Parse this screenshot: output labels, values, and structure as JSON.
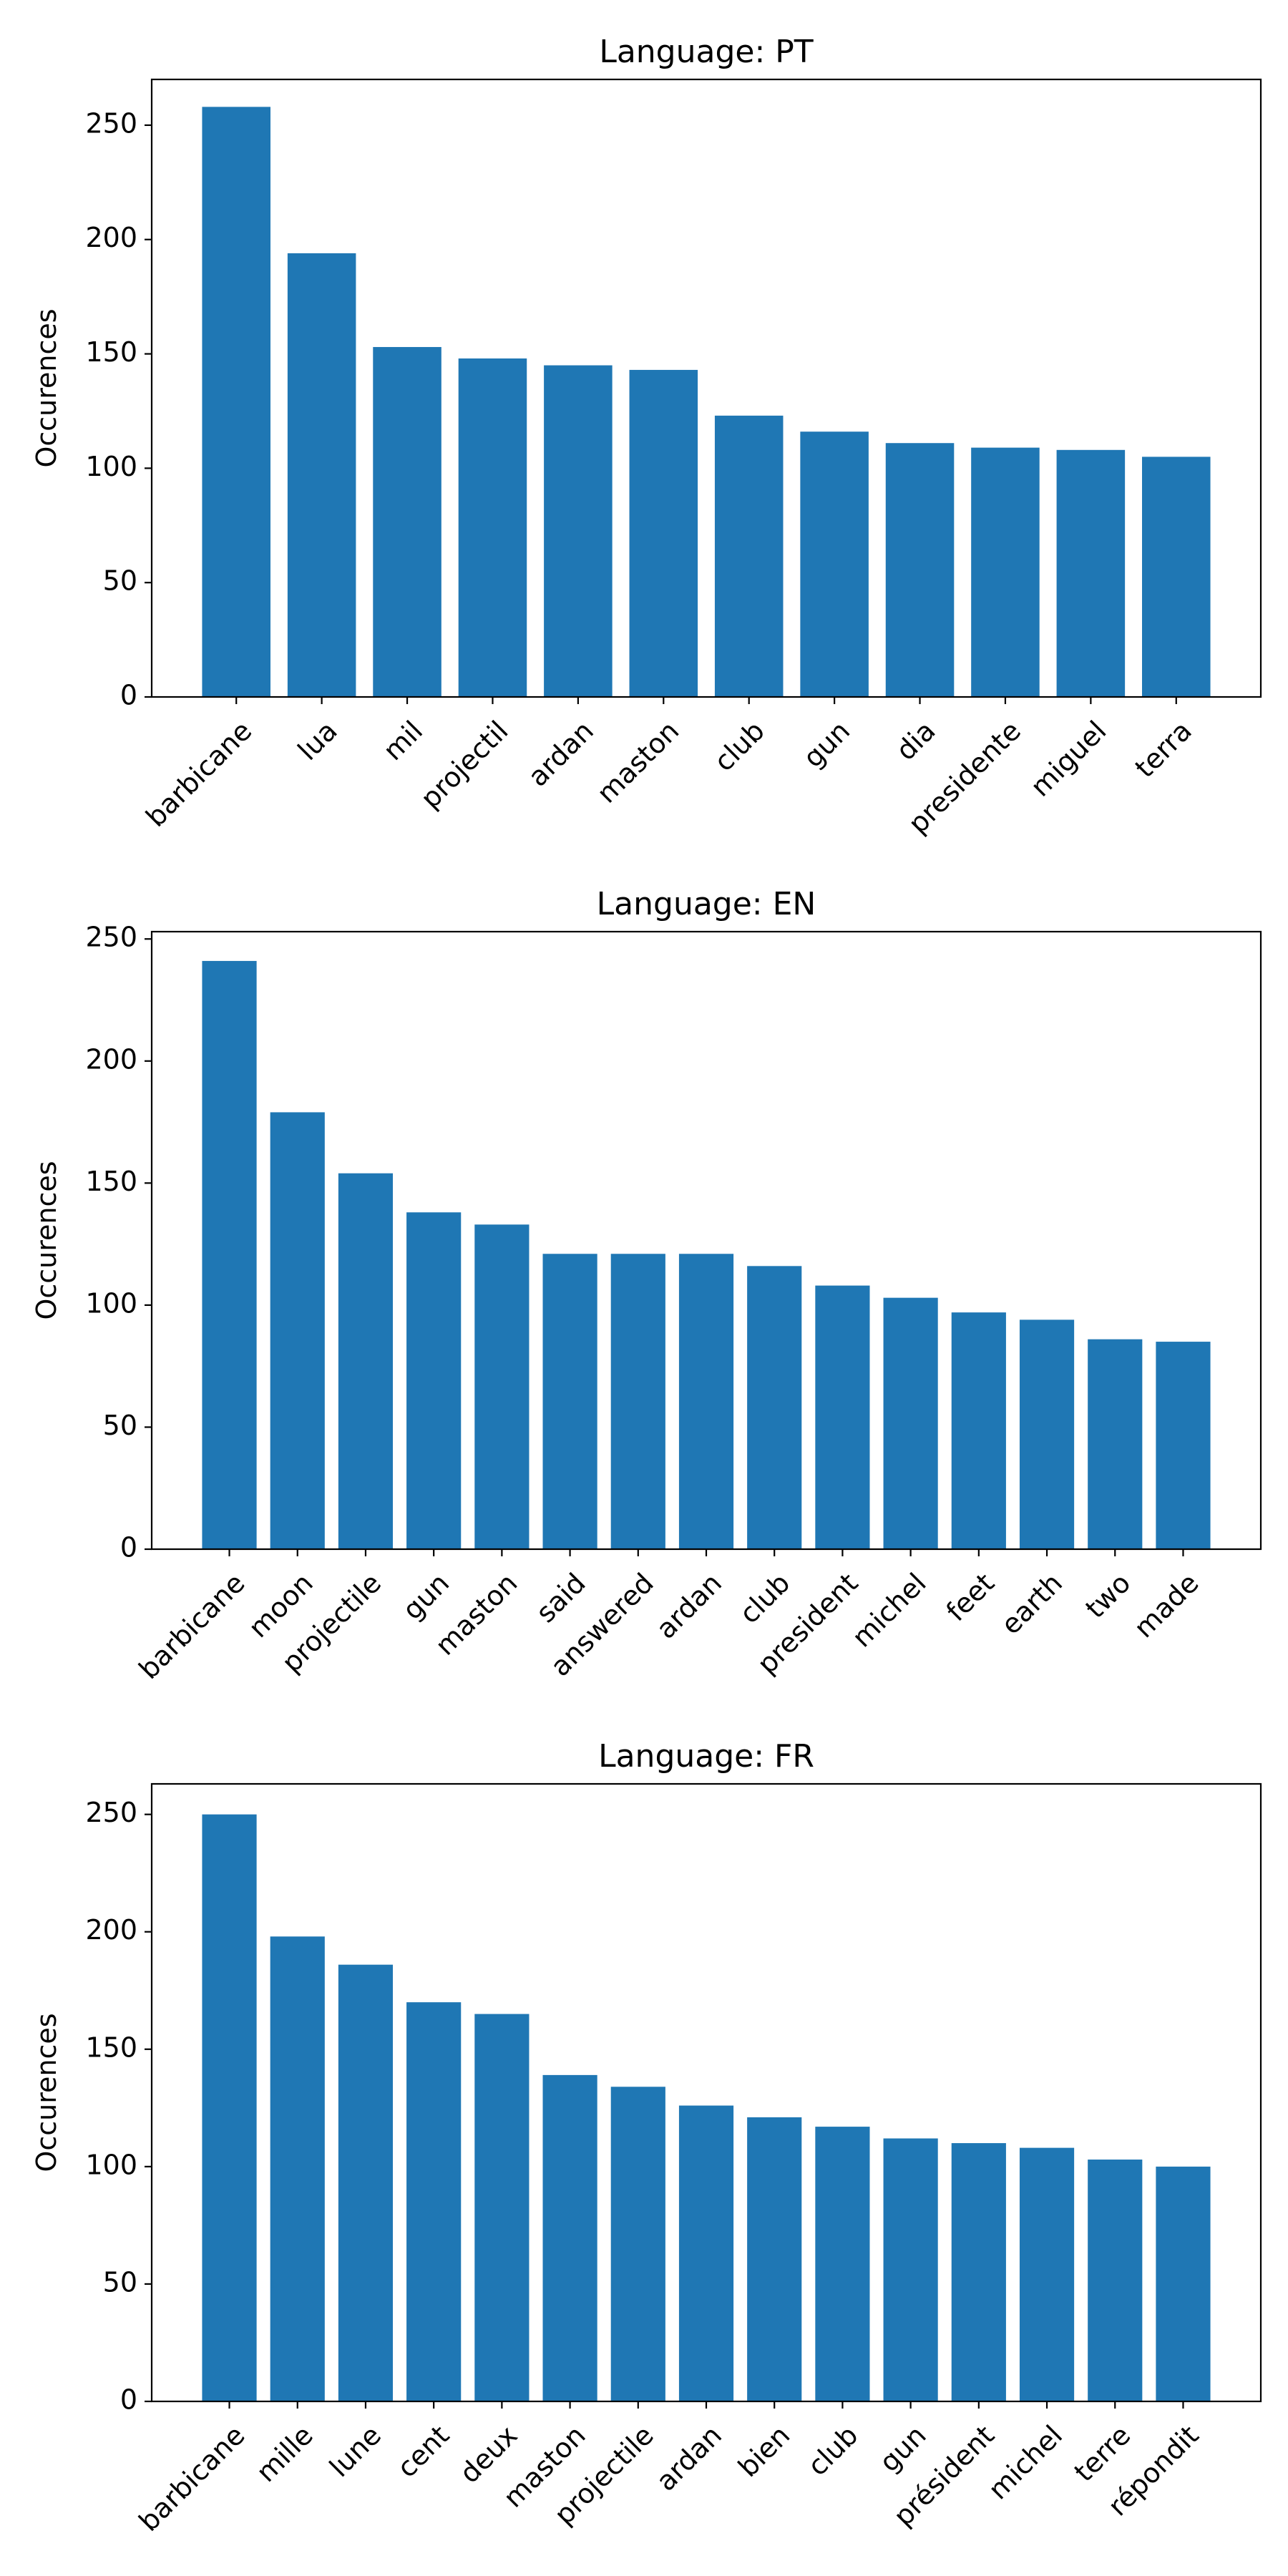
{
  "colors": {
    "bar": "#1f77b4",
    "axes": "#000000",
    "background": "#ffffff"
  },
  "chart_data": [
    {
      "type": "bar",
      "title": "Language: PT",
      "xlabel": "",
      "ylabel": "Occurences",
      "ylim": [
        0,
        270
      ],
      "yticks": [
        0,
        50,
        100,
        150,
        200,
        250
      ],
      "grid": false,
      "categories": [
        "barbicane",
        "lua",
        "mil",
        "projectil",
        "ardan",
        "maston",
        "club",
        "gun",
        "dia",
        "presidente",
        "miguel",
        "terra"
      ],
      "values": [
        258,
        194,
        153,
        148,
        145,
        143,
        123,
        116,
        111,
        109,
        108,
        105
      ]
    },
    {
      "type": "bar",
      "title": "Language: EN",
      "xlabel": "",
      "ylabel": "Occurences",
      "ylim": [
        0,
        253
      ],
      "yticks": [
        0,
        50,
        100,
        150,
        200,
        250
      ],
      "grid": false,
      "categories": [
        "barbicane",
        "moon",
        "projectile",
        "gun",
        "maston",
        "said",
        "answered",
        "ardan",
        "club",
        "president",
        "michel",
        "feet",
        "earth",
        "two",
        "made"
      ],
      "values": [
        241,
        179,
        154,
        138,
        133,
        121,
        121,
        121,
        116,
        108,
        103,
        97,
        94,
        86,
        85
      ]
    },
    {
      "type": "bar",
      "title": "Language: FR",
      "xlabel": "",
      "ylabel": "Occurences",
      "ylim": [
        0,
        263
      ],
      "yticks": [
        0,
        50,
        100,
        150,
        200,
        250
      ],
      "grid": false,
      "categories": [
        "barbicane",
        "mille",
        "lune",
        "cent",
        "deux",
        "maston",
        "projectile",
        "ardan",
        "bien",
        "club",
        "gun",
        "président",
        "michel",
        "terre",
        "répondit"
      ],
      "values": [
        250,
        198,
        186,
        170,
        165,
        139,
        134,
        126,
        121,
        117,
        112,
        110,
        108,
        103,
        100
      ]
    }
  ]
}
